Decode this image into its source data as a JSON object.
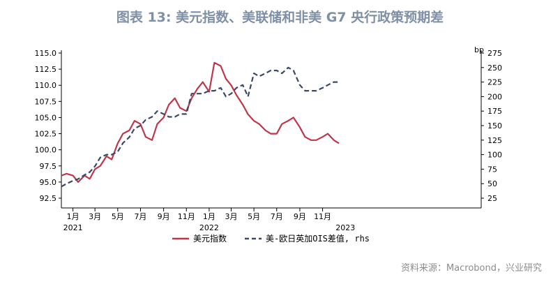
{
  "title": "图表 13: 美元指数、美联储和非美 G7 央行政策预期差",
  "source": "资料来源：Macrobond，兴业研究",
  "colors": {
    "series1": "#c0364a",
    "series2": "#3a4a66",
    "title": "#7f8fa6"
  },
  "chart_data": {
    "type": "line",
    "title": "图表 13: 美元指数、美联储和非美 G7 央行政策预期差",
    "left_axis": {
      "ylim": [
        92.5,
        115.0
      ],
      "ticks": [
        92.5,
        95.0,
        97.5,
        100.0,
        102.5,
        105.0,
        107.5,
        110.0,
        112.5,
        115.0
      ],
      "tick_labels": [
        "92.5",
        "95.0",
        "97.5",
        "100.0",
        "102.5",
        "105.0",
        "107.5",
        "110.0",
        "112.5",
        "115.0"
      ]
    },
    "right_axis": {
      "unit_label": "bp",
      "ylim": [
        25,
        275
      ],
      "ticks": [
        25,
        50,
        75,
        100,
        125,
        150,
        175,
        200,
        225,
        250,
        275
      ],
      "tick_labels": [
        "25",
        "50",
        "75",
        "100",
        "125",
        "150",
        "175",
        "200",
        "225",
        "250",
        "275"
      ]
    },
    "x_axis": {
      "range": [
        "2020-12-01",
        "2023-12-31"
      ],
      "month_ticks": [
        {
          "date": "2021-01-01",
          "label": "1月"
        },
        {
          "date": "2021-03-01",
          "label": "3月"
        },
        {
          "date": "2021-05-01",
          "label": "5月"
        },
        {
          "date": "2021-07-01",
          "label": "7月"
        },
        {
          "date": "2021-09-01",
          "label": "9月"
        },
        {
          "date": "2021-11-01",
          "label": "11月"
        },
        {
          "date": "2022-01-01",
          "label": "1月"
        },
        {
          "date": "2022-03-01",
          "label": "3月"
        },
        {
          "date": "2022-05-01",
          "label": "5月"
        },
        {
          "date": "2022-07-01",
          "label": "7月"
        },
        {
          "date": "2022-09-01",
          "label": "9月"
        },
        {
          "date": "2022-11-01",
          "label": "11月"
        }
      ],
      "year_labels": [
        {
          "date": "2021-01-01",
          "label": "2021"
        },
        {
          "date": "2022-01-01",
          "label": "2022"
        },
        {
          "date": "2023-01-01",
          "label": "2023"
        }
      ]
    },
    "legend_position": "bottom-center",
    "series": [
      {
        "name": "美元指数",
        "axis": "left",
        "style": "solid",
        "x": [
          "2020-12-01",
          "2020-12-15",
          "2021-01-01",
          "2021-01-15",
          "2021-02-01",
          "2021-02-15",
          "2021-03-01",
          "2021-03-15",
          "2021-04-01",
          "2021-04-15",
          "2021-05-01",
          "2021-05-15",
          "2021-06-01",
          "2021-06-15",
          "2021-07-01",
          "2021-07-15",
          "2021-08-01",
          "2021-08-15",
          "2021-09-01",
          "2021-09-15",
          "2021-10-01",
          "2021-10-15",
          "2021-11-01",
          "2021-11-15",
          "2021-12-01",
          "2021-12-15",
          "2022-01-01",
          "2022-01-15",
          "2022-02-01",
          "2022-02-15",
          "2022-03-01",
          "2022-03-15",
          "2022-04-01",
          "2022-04-15",
          "2022-05-01",
          "2022-05-15",
          "2022-06-01",
          "2022-06-15",
          "2022-07-01",
          "2022-07-15",
          "2022-08-01",
          "2022-08-15",
          "2022-09-01",
          "2022-09-15",
          "2022-10-01",
          "2022-10-15",
          "2022-11-01",
          "2022-11-15",
          "2022-12-01",
          "2022-12-15"
        ],
        "y": [
          96.0,
          96.3,
          96.0,
          95.0,
          96.0,
          95.5,
          97.0,
          97.5,
          99.0,
          98.5,
          101.0,
          102.5,
          103.0,
          104.5,
          104.0,
          102.0,
          101.5,
          104.0,
          105.0,
          107.0,
          108.0,
          106.5,
          106.0,
          108.0,
          109.5,
          110.5,
          109.0,
          113.5,
          113.0,
          111.0,
          110.0,
          108.5,
          107.0,
          105.5,
          104.5,
          104.0,
          103.0,
          102.5,
          102.5,
          104.0,
          104.5,
          105.0,
          103.5,
          102.0,
          101.5,
          101.5,
          102.0,
          102.5,
          101.5,
          101.0
        ]
      },
      {
        "name": "美-欧日英加OIS差值, rhs",
        "axis": "right",
        "style": "dashed",
        "x": [
          "2020-12-01",
          "2020-12-15",
          "2021-01-01",
          "2021-01-15",
          "2021-02-01",
          "2021-02-15",
          "2021-03-01",
          "2021-03-15",
          "2021-04-01",
          "2021-04-15",
          "2021-05-01",
          "2021-05-15",
          "2021-06-01",
          "2021-06-15",
          "2021-07-01",
          "2021-07-15",
          "2021-08-01",
          "2021-08-15",
          "2021-09-01",
          "2021-09-15",
          "2021-10-01",
          "2021-10-15",
          "2021-11-01",
          "2021-11-15",
          "2021-12-01",
          "2021-12-15",
          "2022-01-01",
          "2022-01-15",
          "2022-02-01",
          "2022-02-15",
          "2022-03-01",
          "2022-03-15",
          "2022-04-01",
          "2022-04-15",
          "2022-05-01",
          "2022-05-15",
          "2022-06-01",
          "2022-06-15",
          "2022-07-01",
          "2022-07-15",
          "2022-08-01",
          "2022-08-15",
          "2022-09-01",
          "2022-09-15",
          "2022-10-01",
          "2022-10-15",
          "2022-11-01",
          "2022-11-15",
          "2022-12-01",
          "2022-12-15"
        ],
        "y": [
          45,
          50,
          55,
          58,
          65,
          70,
          80,
          95,
          100,
          100,
          105,
          120,
          130,
          145,
          150,
          160,
          165,
          175,
          170,
          165,
          165,
          170,
          170,
          205,
          205,
          205,
          210,
          210,
          215,
          200,
          205,
          215,
          220,
          200,
          240,
          235,
          240,
          245,
          245,
          240,
          250,
          245,
          220,
          210,
          210,
          210,
          215,
          220,
          225,
          225
        ]
      }
    ]
  }
}
